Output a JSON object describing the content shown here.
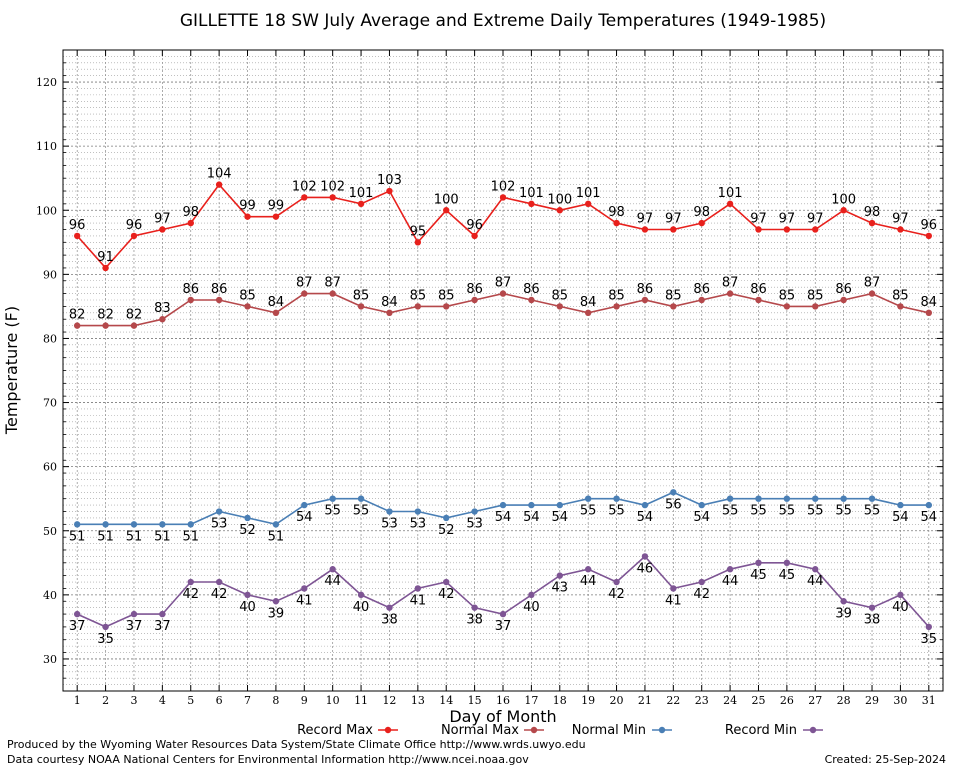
{
  "chart_data": {
    "type": "line",
    "title": "GILLETTE 18 SW July Average and Extreme Daily Temperatures (1949-1985)",
    "xlabel": "Day of Month",
    "ylabel": "Temperature (F)",
    "x": [
      1,
      2,
      3,
      4,
      5,
      6,
      7,
      8,
      9,
      10,
      11,
      12,
      13,
      14,
      15,
      16,
      17,
      18,
      19,
      20,
      21,
      22,
      23,
      24,
      25,
      26,
      27,
      28,
      29,
      30,
      31
    ],
    "x_ticks": [
      "1",
      "2",
      "3",
      "4",
      "5",
      "6",
      "7",
      "8",
      "9",
      "10",
      "11",
      "12",
      "13",
      "14",
      "15",
      "16",
      "17",
      "18",
      "19",
      "20",
      "21",
      "22",
      "23",
      "24",
      "25",
      "26",
      "27",
      "28",
      "29",
      "30",
      "31"
    ],
    "xlim": [
      0.5,
      31.5
    ],
    "ylim": [
      25,
      125
    ],
    "y_ticks": [
      "30",
      "40",
      "50",
      "60",
      "70",
      "80",
      "90",
      "100",
      "110",
      "120"
    ],
    "grid": true,
    "legend_position": "bottom",
    "series": [
      {
        "name": "Record Max",
        "color": "#e8201c",
        "label_position": "above",
        "values": [
          96,
          91,
          96,
          97,
          98,
          104,
          99,
          99,
          102,
          102,
          101,
          103,
          95,
          100,
          96,
          102,
          101,
          100,
          101,
          98,
          97,
          97,
          98,
          101,
          97,
          97,
          97,
          100,
          98,
          97,
          96
        ]
      },
      {
        "name": "Normal Max",
        "color": "#b5484b",
        "label_position": "above",
        "values": [
          82,
          82,
          82,
          83,
          86,
          86,
          85,
          84,
          87,
          87,
          85,
          84,
          85,
          85,
          86,
          87,
          86,
          85,
          84,
          85,
          86,
          85,
          86,
          87,
          86,
          85,
          85,
          86,
          87,
          85,
          84
        ]
      },
      {
        "name": "Normal Min",
        "color": "#4a7fb5",
        "label_position": "below",
        "values": [
          51,
          51,
          51,
          51,
          51,
          53,
          52,
          51,
          54,
          55,
          55,
          53,
          53,
          52,
          53,
          54,
          54,
          54,
          55,
          55,
          54,
          56,
          54,
          55,
          55,
          55,
          55,
          55,
          55,
          54,
          54
        ]
      },
      {
        "name": "Record Min",
        "color": "#7e5594",
        "label_position": "below",
        "values": [
          37,
          35,
          37,
          37,
          42,
          42,
          40,
          39,
          41,
          44,
          40,
          38,
          41,
          42,
          38,
          37,
          40,
          43,
          44,
          42,
          46,
          41,
          42,
          44,
          45,
          45,
          44,
          39,
          38,
          40,
          35
        ]
      }
    ]
  },
  "footer": {
    "produced_by": "Produced by the Wyoming Water Resources Data System/State Climate Office http://www.wrds.uwyo.edu",
    "data_courtesy": "Data courtesy NOAA National Centers for Environmental Information http://www.ncei.noaa.gov",
    "created": "Created:  25-Sep-2024"
  }
}
